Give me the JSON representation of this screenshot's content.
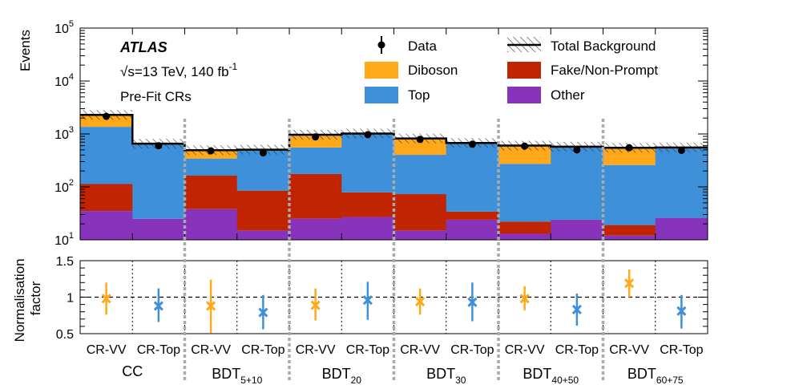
{
  "chart_data": {
    "type": "stacked-histogram",
    "experiment": "ATLAS",
    "energy_label_root": "√",
    "energy_label_s": "s=13 TeV, 140 fb",
    "energy_label_exp": "-1",
    "region_label": "Pre-Fit CRs",
    "top_panel": {
      "ylabel": "Events",
      "yscale": "log",
      "ylim": [
        10,
        100000
      ],
      "y_ticks": [
        {
          "base": "10",
          "exp": "1"
        },
        {
          "base": "10",
          "exp": "2"
        },
        {
          "base": "10",
          "exp": "3"
        },
        {
          "base": "10",
          "exp": "4"
        },
        {
          "base": "10",
          "exp": "5"
        }
      ],
      "bins": [
        "CC CR-VV",
        "CC CR-Top",
        "BDT5+10 CR-VV",
        "BDT5+10 CR-Top",
        "BDT20 CR-VV",
        "BDT20 CR-Top",
        "BDT30 CR-VV",
        "BDT30 CR-Top",
        "BDT40+50 CR-VV",
        "BDT40+50 CR-Top",
        "BDT60+75 CR-VV",
        "BDT60+75 CR-Top"
      ],
      "series": [
        {
          "name": "Other",
          "color": "#8833bb",
          "values": [
            35,
            25,
            38,
            15,
            25,
            27,
            15,
            24,
            13,
            24,
            12,
            26
          ]
        },
        {
          "name": "Fake/Non-Prompt",
          "color": "#c02400",
          "values": [
            78,
            0,
            125,
            70,
            150,
            52,
            58,
            10,
            9,
            0,
            7,
            0
          ]
        },
        {
          "name": "Top",
          "color": "#3e90d8",
          "values": [
            1250,
            630,
            180,
            420,
            380,
            940,
            330,
            640,
            250,
            550,
            240,
            530
          ]
        },
        {
          "name": "Diboson",
          "color": "#ffa91a",
          "values": [
            930,
            0,
            150,
            0,
            410,
            0,
            420,
            0,
            330,
            0,
            290,
            0
          ]
        }
      ],
      "total_background": [
        2290,
        655,
        493,
        505,
        965,
        1019,
        823,
        674,
        602,
        574,
        549,
        556
      ],
      "data": [
        2150,
        600,
        480,
        440,
        880,
        970,
        790,
        640,
        590,
        500,
        550,
        490
      ]
    },
    "legend": [
      {
        "label": "Data",
        "kind": "marker"
      },
      {
        "label": "Total Background",
        "kind": "hatch"
      },
      {
        "label": "Diboson",
        "kind": "fill",
        "color": "#ffa91a"
      },
      {
        "label": "Fake/Non-Prompt",
        "kind": "fill",
        "color": "#c02400"
      },
      {
        "label": "Top",
        "kind": "fill",
        "color": "#3e90d8"
      },
      {
        "label": "Other",
        "kind": "fill",
        "color": "#8833bb"
      }
    ],
    "bottom_panel": {
      "ylabel_line1": "Normalisation",
      "ylabel_line2": "factor",
      "ylim": [
        0.5,
        1.5
      ],
      "y_ticks": [
        "0.5",
        "1",
        "1.5"
      ],
      "reference_line": 1,
      "points": [
        {
          "bin": "CC CR-VV",
          "value": 0.98,
          "err_low": 0.22,
          "err_high": 0.22,
          "color": "#ffa91a"
        },
        {
          "bin": "CC CR-Top",
          "value": 0.88,
          "err_low": 0.22,
          "err_high": 0.24,
          "color": "#3e90d8"
        },
        {
          "bin": "BDT5+10 CR-VV",
          "value": 0.88,
          "err_low": 0.37,
          "err_high": 0.36,
          "color": "#ffa91a"
        },
        {
          "bin": "BDT5+10 CR-Top",
          "value": 0.79,
          "err_low": 0.23,
          "err_high": 0.24,
          "color": "#3e90d8"
        },
        {
          "bin": "BDT20 CR-VV",
          "value": 0.89,
          "err_low": 0.21,
          "err_high": 0.23,
          "color": "#ffa91a"
        },
        {
          "bin": "BDT20 CR-Top",
          "value": 0.96,
          "err_low": 0.27,
          "err_high": 0.25,
          "color": "#3e90d8"
        },
        {
          "bin": "BDT30 CR-VV",
          "value": 0.94,
          "err_low": 0.18,
          "err_high": 0.18,
          "color": "#ffa91a"
        },
        {
          "bin": "BDT30 CR-Top",
          "value": 0.93,
          "err_low": 0.26,
          "err_high": 0.27,
          "color": "#3e90d8"
        },
        {
          "bin": "BDT40+50 CR-VV",
          "value": 0.98,
          "err_low": 0.16,
          "err_high": 0.17,
          "color": "#ffa91a"
        },
        {
          "bin": "BDT40+50 CR-Top",
          "value": 0.83,
          "err_low": 0.22,
          "err_high": 0.22,
          "color": "#3e90d8"
        },
        {
          "bin": "BDT60+75 CR-VV",
          "value": 1.19,
          "err_low": 0.19,
          "err_high": 0.19,
          "color": "#ffa91a"
        },
        {
          "bin": "BDT60+75 CR-Top",
          "value": 0.81,
          "err_low": 0.24,
          "err_high": 0.22,
          "color": "#3e90d8"
        }
      ]
    },
    "x_bin_labels": [
      "CR-VV",
      "CR-Top",
      "CR-VV",
      "CR-Top",
      "CR-VV",
      "CR-Top",
      "CR-VV",
      "CR-Top",
      "CR-VV",
      "CR-Top",
      "CR-VV",
      "CR-Top"
    ],
    "groups": [
      {
        "base": "CC",
        "sub": ""
      },
      {
        "base": "BDT",
        "sub": "5+10"
      },
      {
        "base": "BDT",
        "sub": "20"
      },
      {
        "base": "BDT",
        "sub": "30"
      },
      {
        "base": "BDT",
        "sub": "40+50"
      },
      {
        "base": "BDT",
        "sub": "60+75"
      }
    ]
  }
}
